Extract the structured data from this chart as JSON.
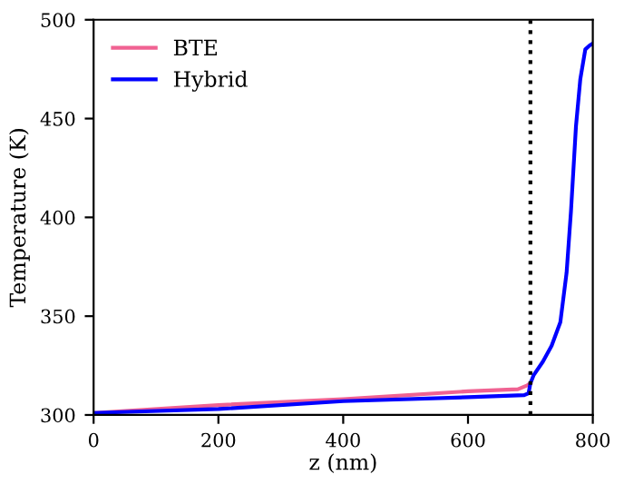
{
  "chart_data": {
    "type": "line",
    "xlabel": "z (nm)",
    "ylabel": "Temperature (K)",
    "xlim": [
      0,
      800
    ],
    "ylim": [
      300,
      500
    ],
    "xticks": [
      0,
      200,
      400,
      600,
      800
    ],
    "yticks": [
      300,
      350,
      400,
      450,
      500
    ],
    "grid": false,
    "legend": "top left",
    "line_style": "solid",
    "marker": "none",
    "ref_lines": [
      {
        "axis": "x",
        "value": 700,
        "color": "#000000",
        "line_style": "dotted"
      }
    ],
    "series": [
      {
        "name": "BTE",
        "color": "#f06292",
        "x": [
          0,
          200,
          400,
          600,
          680,
          695,
          700
        ],
        "values": [
          301,
          305,
          308,
          312,
          313,
          315,
          316
        ]
      },
      {
        "name": "Hybrid",
        "color": "#0000ff",
        "x": [
          0,
          200,
          400,
          600,
          690,
          697,
          700,
          705,
          720,
          734,
          748,
          758,
          765,
          773,
          780,
          788,
          795,
          800
        ],
        "values": [
          301,
          303,
          307,
          309,
          310,
          311,
          316,
          320,
          327,
          335,
          347,
          372,
          403,
          446,
          470,
          485,
          487,
          488
        ]
      }
    ]
  }
}
